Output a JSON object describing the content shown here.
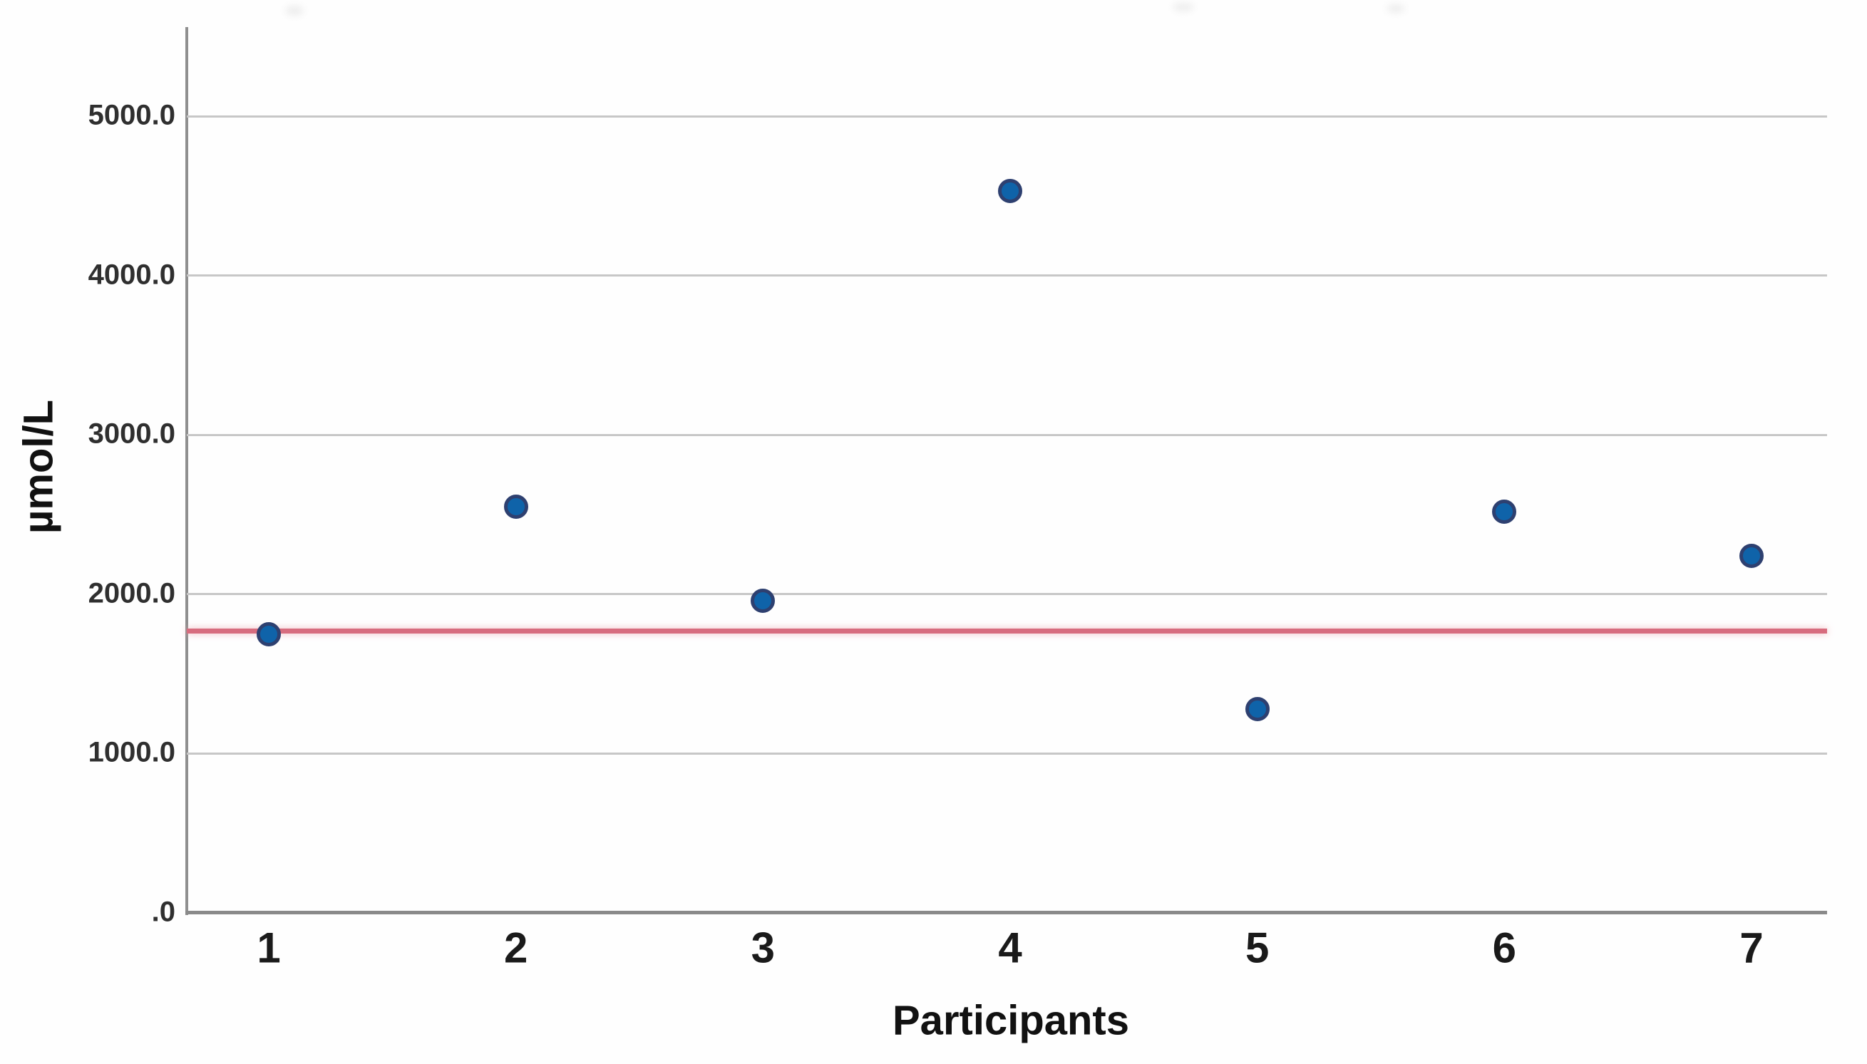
{
  "figure": {
    "background": "#fefefe"
  },
  "chart_data": {
    "type": "scatter",
    "title": "",
    "xlabel": "Participants",
    "ylabel": "µmol/L",
    "categories": [
      "1",
      "2",
      "3",
      "4",
      "5",
      "6",
      "7"
    ],
    "values": [
      1750,
      2550,
      1960,
      4530,
      1280,
      2520,
      2240
    ],
    "reference_line": {
      "orientation": "horizontal",
      "value": 1770,
      "color": "#d76c7e"
    },
    "ylim": [
      0,
      5560
    ],
    "yticks": {
      "values": [
        0,
        1000,
        2000,
        3000,
        4000,
        5000
      ],
      "labels": [
        ".0",
        "1000.0",
        "2000.0",
        "3000.0",
        "4000.0",
        "5000.0"
      ]
    },
    "grid": "horizontal",
    "legend": "none",
    "colors": {
      "point_fill": "#0f63a9",
      "point_ring": "#2e4070",
      "gridline": "#c7c7c7",
      "axis": "#8f8f8f",
      "tick_text": "#2f2f2f"
    }
  }
}
